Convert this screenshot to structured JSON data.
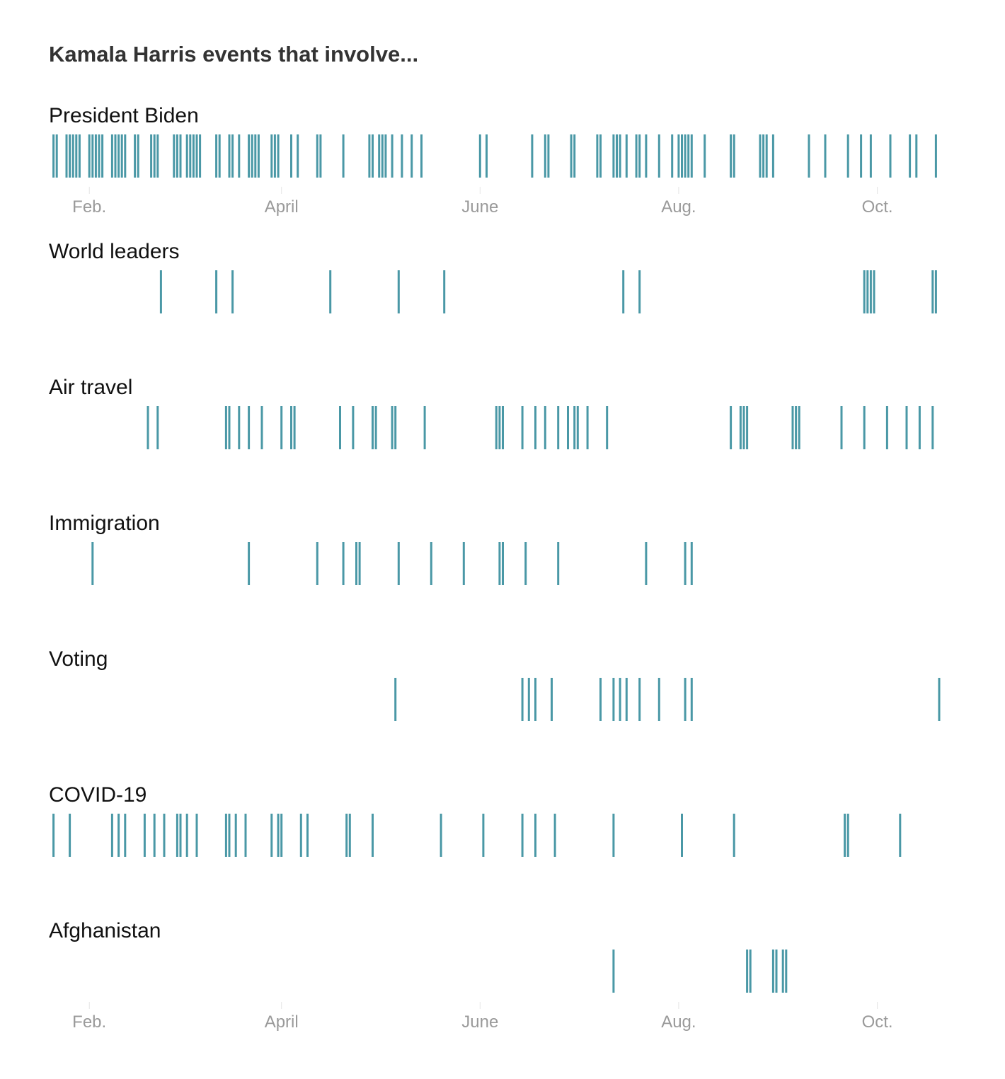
{
  "chart_data": {
    "type": "strip",
    "title": "Kamala Harris events that involve...",
    "color": "#4a98a6",
    "tick_color": "#9a9a9a",
    "x_axis": {
      "start": "2021-01-20",
      "end": "2021-10-25",
      "ticks": [
        {
          "date": "2021-02-01",
          "label": "Feb."
        },
        {
          "date": "2021-04-01",
          "label": "April"
        },
        {
          "date": "2021-06-01",
          "label": "June"
        },
        {
          "date": "2021-08-01",
          "label": "Aug."
        },
        {
          "date": "2021-10-01",
          "label": "Oct."
        }
      ]
    },
    "rows": [
      {
        "label": "President Biden",
        "dates": [
          "2021-01-21",
          "2021-01-22",
          "2021-01-25",
          "2021-01-26",
          "2021-01-27",
          "2021-01-28",
          "2021-01-29",
          "2021-02-01",
          "2021-02-02",
          "2021-02-03",
          "2021-02-04",
          "2021-02-05",
          "2021-02-08",
          "2021-02-09",
          "2021-02-10",
          "2021-02-11",
          "2021-02-12",
          "2021-02-15",
          "2021-02-16",
          "2021-02-20",
          "2021-02-21",
          "2021-02-22",
          "2021-02-27",
          "2021-02-28",
          "2021-03-01",
          "2021-03-03",
          "2021-03-04",
          "2021-03-05",
          "2021-03-06",
          "2021-03-07",
          "2021-03-12",
          "2021-03-13",
          "2021-03-16",
          "2021-03-17",
          "2021-03-19",
          "2021-03-22",
          "2021-03-23",
          "2021-03-24",
          "2021-03-25",
          "2021-03-29",
          "2021-03-30",
          "2021-03-31",
          "2021-04-04",
          "2021-04-06",
          "2021-04-12",
          "2021-04-13",
          "2021-04-20",
          "2021-04-28",
          "2021-04-29",
          "2021-05-01",
          "2021-05-02",
          "2021-05-03",
          "2021-05-05",
          "2021-05-08",
          "2021-05-11",
          "2021-05-14",
          "2021-06-01",
          "2021-06-03",
          "2021-06-17",
          "2021-06-21",
          "2021-06-22",
          "2021-06-29",
          "2021-06-30",
          "2021-07-07",
          "2021-07-08",
          "2021-07-12",
          "2021-07-13",
          "2021-07-14",
          "2021-07-16",
          "2021-07-19",
          "2021-07-20",
          "2021-07-22",
          "2021-07-26",
          "2021-07-30",
          "2021-08-01",
          "2021-08-02",
          "2021-08-03",
          "2021-08-04",
          "2021-08-05",
          "2021-08-09",
          "2021-08-17",
          "2021-08-18",
          "2021-08-26",
          "2021-08-27",
          "2021-08-28",
          "2021-08-30",
          "2021-09-10",
          "2021-09-15",
          "2021-09-22",
          "2021-09-26",
          "2021-09-29",
          "2021-10-05",
          "2021-10-11",
          "2021-10-13",
          "2021-10-19"
        ]
      },
      {
        "label": "World leaders",
        "dates": [
          "2021-02-23",
          "2021-03-12",
          "2021-03-17",
          "2021-04-16",
          "2021-05-07",
          "2021-05-21",
          "2021-07-15",
          "2021-07-20",
          "2021-09-27",
          "2021-09-28",
          "2021-09-29",
          "2021-09-30",
          "2021-10-18",
          "2021-10-19"
        ]
      },
      {
        "label": "Air travel",
        "dates": [
          "2021-02-19",
          "2021-02-22",
          "2021-03-15",
          "2021-03-16",
          "2021-03-19",
          "2021-03-22",
          "2021-03-26",
          "2021-04-01",
          "2021-04-04",
          "2021-04-05",
          "2021-04-19",
          "2021-04-23",
          "2021-04-29",
          "2021-04-30",
          "2021-05-05",
          "2021-05-06",
          "2021-05-15",
          "2021-06-06",
          "2021-06-07",
          "2021-06-08",
          "2021-06-14",
          "2021-06-18",
          "2021-06-21",
          "2021-06-25",
          "2021-06-28",
          "2021-06-30",
          "2021-07-01",
          "2021-07-04",
          "2021-07-10",
          "2021-08-17",
          "2021-08-20",
          "2021-08-21",
          "2021-08-22",
          "2021-09-05",
          "2021-09-06",
          "2021-09-07",
          "2021-09-20",
          "2021-09-27",
          "2021-10-04",
          "2021-10-10",
          "2021-10-14",
          "2021-10-18"
        ]
      },
      {
        "label": "Immigration",
        "dates": [
          "2021-02-02",
          "2021-03-22",
          "2021-04-12",
          "2021-04-20",
          "2021-04-24",
          "2021-04-25",
          "2021-05-07",
          "2021-05-17",
          "2021-05-27",
          "2021-06-07",
          "2021-06-08",
          "2021-06-15",
          "2021-06-25",
          "2021-07-22",
          "2021-08-03",
          "2021-08-05"
        ]
      },
      {
        "label": "Voting",
        "dates": [
          "2021-05-06",
          "2021-06-14",
          "2021-06-16",
          "2021-06-18",
          "2021-06-23",
          "2021-07-08",
          "2021-07-12",
          "2021-07-14",
          "2021-07-16",
          "2021-07-20",
          "2021-07-26",
          "2021-08-03",
          "2021-08-05",
          "2021-10-20"
        ]
      },
      {
        "label": "COVID-19",
        "dates": [
          "2021-01-21",
          "2021-01-26",
          "2021-02-08",
          "2021-02-10",
          "2021-02-12",
          "2021-02-18",
          "2021-02-21",
          "2021-02-24",
          "2021-02-28",
          "2021-03-01",
          "2021-03-03",
          "2021-03-06",
          "2021-03-15",
          "2021-03-16",
          "2021-03-18",
          "2021-03-21",
          "2021-03-29",
          "2021-03-31",
          "2021-04-01",
          "2021-04-07",
          "2021-04-09",
          "2021-04-21",
          "2021-04-22",
          "2021-04-29",
          "2021-05-20",
          "2021-06-02",
          "2021-06-14",
          "2021-06-18",
          "2021-06-24",
          "2021-07-12",
          "2021-08-02",
          "2021-08-18",
          "2021-09-21",
          "2021-09-22",
          "2021-10-08"
        ]
      },
      {
        "label": "Afghanistan",
        "dates": [
          "2021-07-12",
          "2021-08-22",
          "2021-08-23",
          "2021-08-30",
          "2021-08-31",
          "2021-09-02",
          "2021-09-03"
        ]
      }
    ]
  }
}
